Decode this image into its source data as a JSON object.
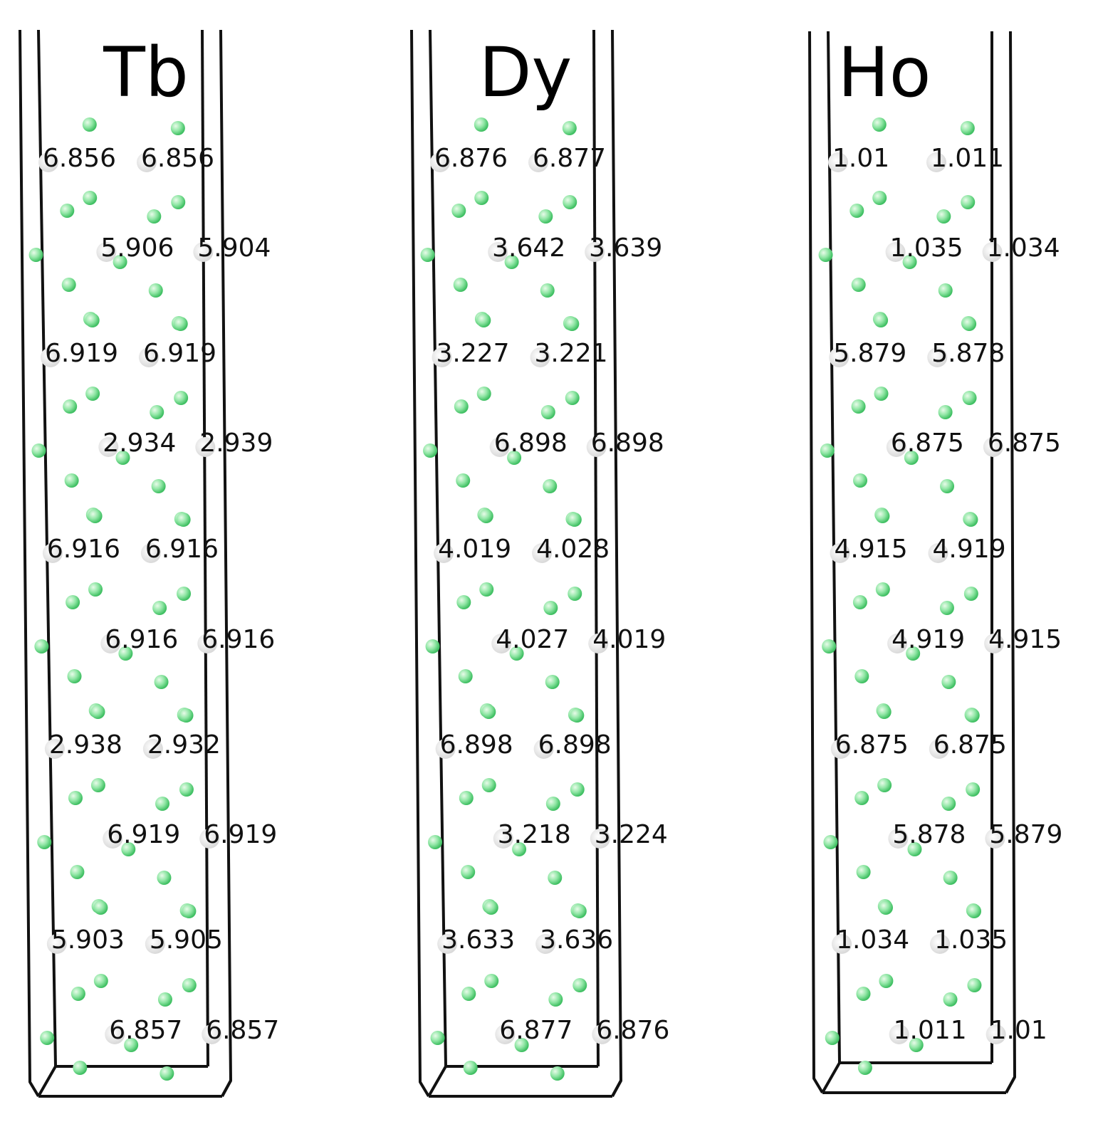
{
  "colors": {
    "atom": "#8fe6a4",
    "atom_shadow": "#d9d9d9",
    "frame": "#111111"
  },
  "panels": [
    {
      "title": "Tb",
      "rows": [
        [
          "6.856",
          "6.856"
        ],
        [
          "5.906",
          "5.904"
        ],
        [
          "6.919",
          "6.919"
        ],
        [
          "2.934",
          "2.939"
        ],
        [
          "6.916",
          "6.916"
        ],
        [
          "6.916",
          "6.916"
        ],
        [
          "2.938",
          "2.932"
        ],
        [
          "6.919",
          "6.919"
        ],
        [
          "5.903",
          "5.905"
        ],
        [
          "6.857",
          "6.857"
        ]
      ]
    },
    {
      "title": "Dy",
      "rows": [
        [
          "6.876",
          "6.877"
        ],
        [
          "3.642",
          "3.639"
        ],
        [
          "3.227",
          "3.221"
        ],
        [
          "6.898",
          "6.898"
        ],
        [
          "4.019",
          "4.028"
        ],
        [
          "4.027",
          "4.019"
        ],
        [
          "6.898",
          "6.898"
        ],
        [
          "3.218",
          "3.224"
        ],
        [
          "3.633",
          "3.636"
        ],
        [
          "6.877",
          "6.876"
        ]
      ]
    },
    {
      "title": "Ho",
      "rows": [
        [
          "1.01",
          "1.011"
        ],
        [
          "1.035",
          "1.034"
        ],
        [
          "5.879",
          "5.878"
        ],
        [
          "6.875",
          "6.875"
        ],
        [
          "4.915",
          "4.919"
        ],
        [
          "4.919",
          "4.915"
        ],
        [
          "6.875",
          "6.875"
        ],
        [
          "5.878",
          "5.879"
        ],
        [
          "1.034",
          "1.035"
        ],
        [
          "1.011",
          "1.01"
        ]
      ]
    }
  ]
}
